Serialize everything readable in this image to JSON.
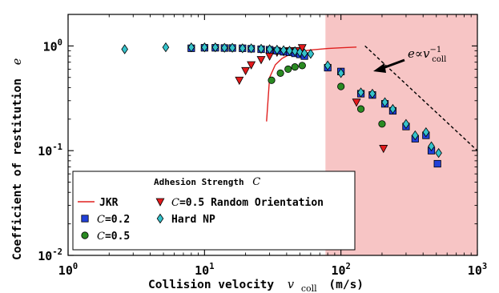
{
  "chart_data": {
    "type": "scatter",
    "xscale": "log",
    "yscale": "log",
    "xlim": [
      1,
      1000
    ],
    "ylim": [
      0.01,
      2
    ],
    "xlabel": "Collision velocity",
    "xlabel_symbol": "v",
    "xlabel_subscript": "coll",
    "xlabel_unit": "(m/s)",
    "ylabel": "Coefficient of restitution",
    "ylabel_symbol": "e",
    "x_ticks": [
      {
        "base": "10",
        "exp": "0",
        "value": 1
      },
      {
        "base": "10",
        "exp": "1",
        "value": 10
      },
      {
        "base": "10",
        "exp": "2",
        "value": 100
      },
      {
        "base": "10",
        "exp": "3",
        "value": 1000
      }
    ],
    "y_ticks": [
      {
        "base": "10",
        "exp": "-2",
        "value": 0.01
      },
      {
        "base": "10",
        "exp": "-1",
        "value": 0.1
      },
      {
        "base": "10",
        "exp": "0",
        "value": 1
      }
    ],
    "shaded_region": {
      "x_from": 77,
      "x_to": 1000,
      "color": "#f7c5c5"
    },
    "annotation": {
      "text": "e∝v",
      "sup": "−1",
      "sub": "coll",
      "arrow_from": [
        125,
        0.75
      ],
      "arrow_to": [
        75,
        0.6
      ],
      "guide_line": {
        "x": [
          150,
          1000
        ],
        "y": [
          1.0,
          0.1
        ]
      }
    },
    "legend": {
      "title": "Adhesion Strength",
      "title_symbol": "C",
      "placement": "lower-left",
      "entries": [
        {
          "id": "jkr",
          "label": "JKR"
        },
        {
          "id": "c02",
          "label": "C=0.2"
        },
        {
          "id": "c05",
          "label": "C=0.5"
        },
        {
          "id": "c05r",
          "label": "C=0.5 Random Orientation"
        },
        {
          "id": "hard",
          "label": "Hard NP"
        }
      ]
    },
    "series": [
      {
        "id": "jkr",
        "name": "JKR",
        "kind": "line",
        "color": "#e0201f",
        "x": [
          28.5,
          30,
          33,
          37,
          42,
          50,
          60,
          80,
          100,
          130
        ],
        "y": [
          0.19,
          0.5,
          0.66,
          0.76,
          0.83,
          0.885,
          0.915,
          0.945,
          0.96,
          0.975
        ]
      },
      {
        "id": "c02",
        "name": "C=0.2",
        "kind": "marker",
        "marker": "square",
        "color": "#2140d8",
        "x": [
          8,
          10,
          12,
          14,
          16,
          19,
          22,
          26,
          30,
          34,
          38,
          42,
          46,
          50,
          54,
          80,
          100,
          140,
          170,
          210,
          240,
          300,
          350,
          420,
          460,
          510
        ],
        "y": [
          0.95,
          0.96,
          0.96,
          0.955,
          0.955,
          0.95,
          0.94,
          0.93,
          0.92,
          0.9,
          0.88,
          0.87,
          0.85,
          0.83,
          0.8,
          0.62,
          0.57,
          0.35,
          0.34,
          0.28,
          0.24,
          0.17,
          0.13,
          0.14,
          0.1,
          0.075
        ]
      },
      {
        "id": "c05",
        "name": "C=0.5",
        "kind": "marker",
        "marker": "circle",
        "color": "#2a8a22",
        "x": [
          31,
          36,
          41,
          46,
          52,
          100,
          140,
          200
        ],
        "y": [
          0.47,
          0.55,
          0.6,
          0.63,
          0.65,
          0.41,
          0.25,
          0.18
        ]
      },
      {
        "id": "c05r",
        "name": "C=0.5 Random Orientation",
        "kind": "marker",
        "marker": "triangle-down",
        "color": "#e41a1c",
        "x": [
          18,
          20,
          22,
          26,
          30,
          34,
          38,
          42,
          48,
          52,
          130,
          205
        ],
        "y": [
          0.47,
          0.58,
          0.66,
          0.74,
          0.8,
          0.87,
          0.88,
          0.9,
          0.9,
          0.96,
          0.29,
          0.105
        ]
      },
      {
        "id": "hard",
        "name": "Hard NP",
        "kind": "marker",
        "marker": "diamond",
        "color": "#35c2cb",
        "x": [
          2.6,
          5.2,
          8,
          10,
          12,
          14,
          16,
          19,
          22,
          26,
          30,
          34,
          38,
          42,
          46,
          50,
          54,
          60,
          80,
          100,
          140,
          170,
          210,
          240,
          300,
          350,
          420,
          460,
          520
        ],
        "y": [
          0.93,
          0.97,
          0.97,
          0.97,
          0.97,
          0.96,
          0.96,
          0.95,
          0.95,
          0.94,
          0.93,
          0.92,
          0.91,
          0.9,
          0.89,
          0.87,
          0.85,
          0.84,
          0.65,
          0.55,
          0.36,
          0.35,
          0.29,
          0.25,
          0.18,
          0.14,
          0.15,
          0.11,
          0.095
        ]
      }
    ]
  }
}
